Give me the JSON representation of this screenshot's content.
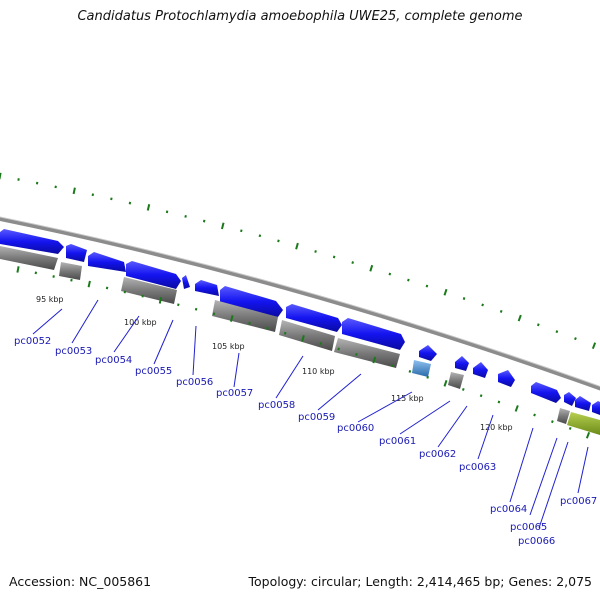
{
  "title": "Candidatus Protochlamydia amoebophila UWE25, complete genome",
  "footer": {
    "accession_label": "Accession:",
    "accession": "NC_005861",
    "topology_label": "Topology:",
    "topology": "circular;",
    "length_label": "Length:",
    "length": "2,414,465 bp;",
    "genes_label": "Genes:",
    "genes": "2,075"
  },
  "position_labels": [
    "95 kbp",
    "100 kbp",
    "105 kbp",
    "110 kbp",
    "115 kbp",
    "120 kbp"
  ],
  "gene_labels": [
    "pc0052",
    "pc0053",
    "pc0054",
    "pc0055",
    "pc0056",
    "pc0057",
    "pc0058",
    "pc0059",
    "pc0060",
    "pc0061",
    "pc0062",
    "pc0063",
    "pc0064",
    "pc0065",
    "pc0066",
    "pc0067"
  ],
  "colors": {
    "forward_gene": "#1414f0",
    "reverse_gene": "#6e6e6e",
    "gene_highlight_light": "#4a8fd0",
    "gene_green": "#8aa82a",
    "backbone": "#8c8c8c",
    "tick": "#1a7a1a",
    "label": "#1a1ab4"
  }
}
